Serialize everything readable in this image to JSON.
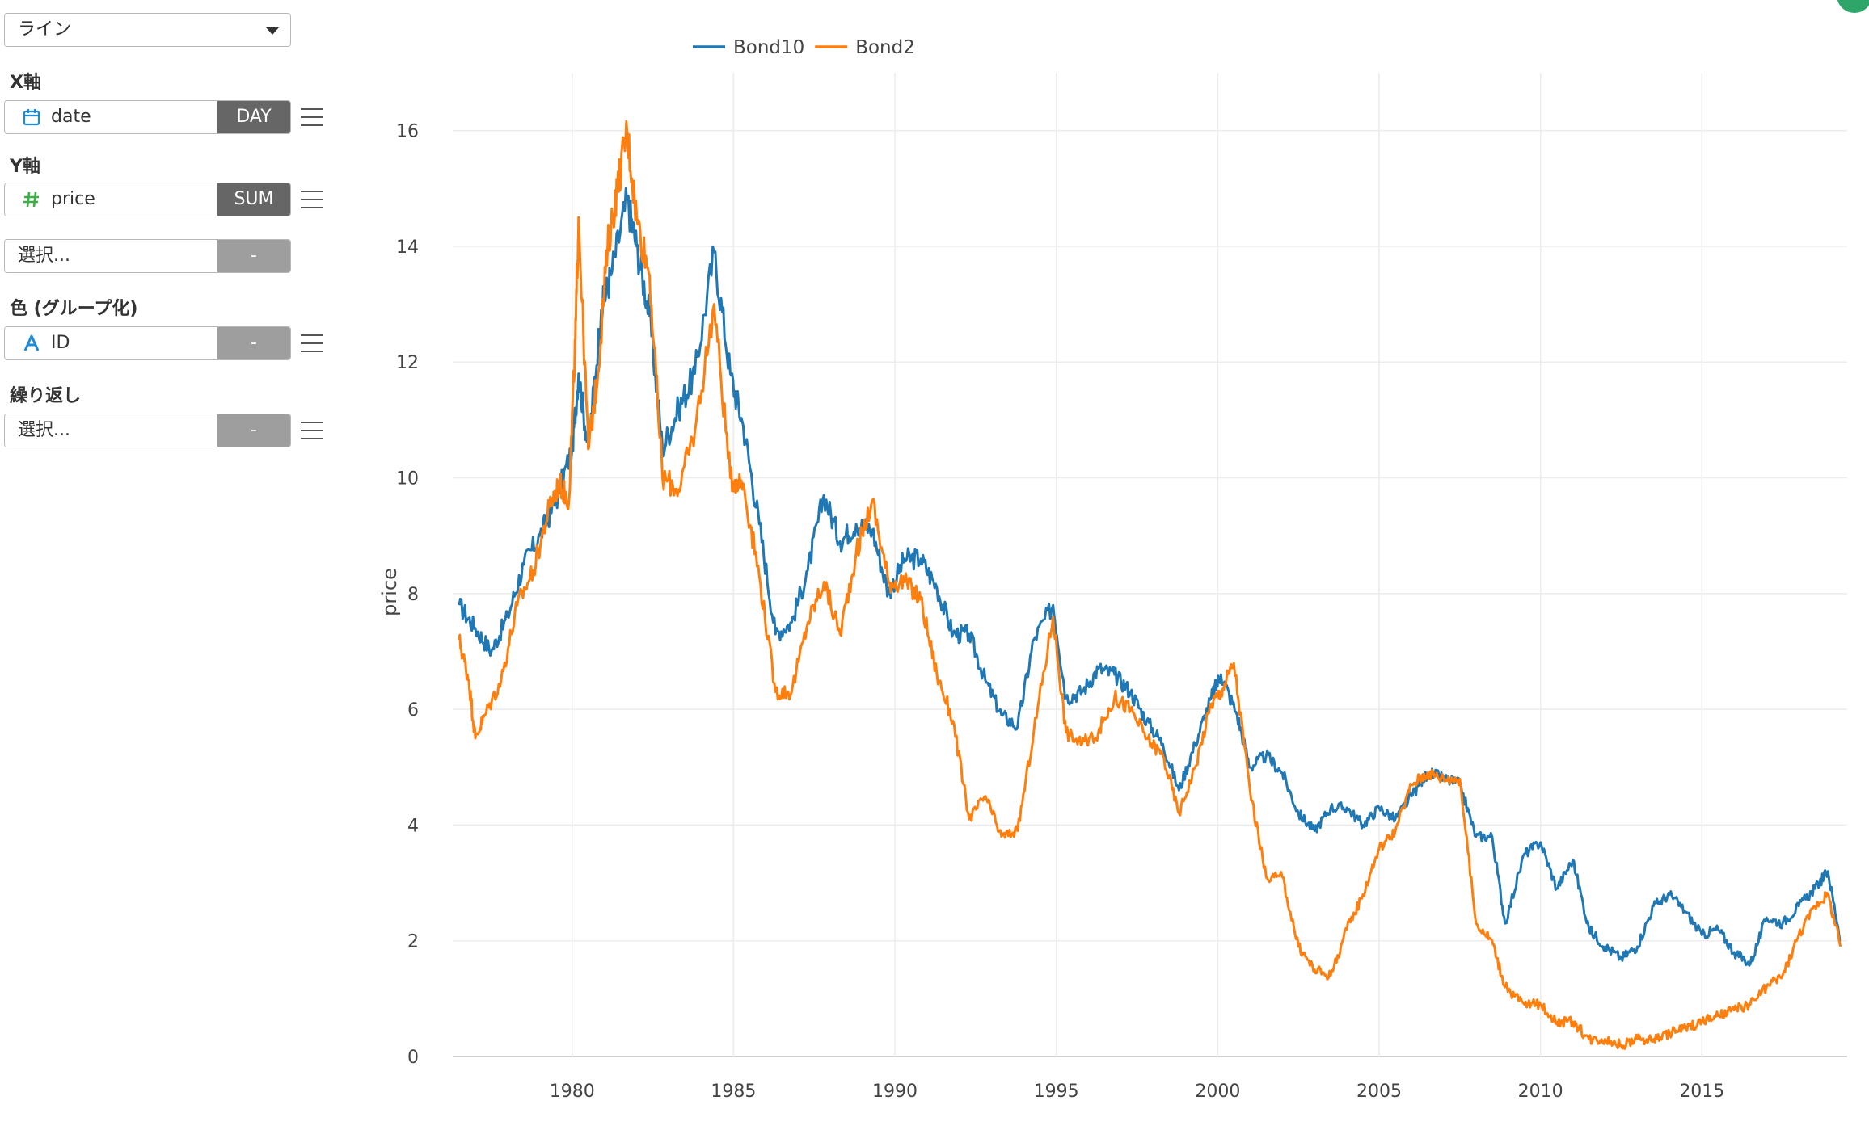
{
  "sidebar": {
    "chart_type": {
      "value": "ライン"
    },
    "x_axis": {
      "label": "X軸",
      "field": "date",
      "agg": "DAY",
      "icon": "calendar-icon"
    },
    "y_axis": {
      "label": "Y軸",
      "field": "price",
      "agg": "SUM",
      "icon": "number-hash-icon",
      "extra_placeholder": "選択...",
      "extra_agg": "-"
    },
    "color": {
      "label": "色 (グループ化)",
      "field": "ID",
      "agg": "-",
      "icon": "text-type-icon"
    },
    "repeat": {
      "label": "繰り返し",
      "placeholder": "選択...",
      "agg": "-"
    }
  },
  "colors": {
    "Bond10": "#1f77b4",
    "Bond2": "#ff7f0e",
    "accent_green": "#2ea66a"
  },
  "chart_data": {
    "type": "line",
    "xlabel": "",
    "ylabel": "price",
    "xlim": [
      1976.3,
      2019.5
    ],
    "ylim": [
      0,
      17
    ],
    "x_ticks": [
      "1980",
      "1985",
      "1990",
      "1995",
      "2000",
      "2005",
      "2010",
      "2015"
    ],
    "y_ticks": [
      "0",
      "2",
      "4",
      "6",
      "8",
      "10",
      "12",
      "14",
      "16"
    ],
    "grid": true,
    "legend": "top-center",
    "series": [
      {
        "name": "Bond10",
        "x": [
          1976.5,
          1977.0,
          1977.5,
          1978.0,
          1978.5,
          1979.0,
          1979.5,
          1980.0,
          1980.2,
          1980.5,
          1980.9,
          1981.2,
          1981.7,
          1982.0,
          1982.4,
          1982.8,
          1983.3,
          1983.8,
          1984.4,
          1984.9,
          1985.3,
          1985.8,
          1986.3,
          1986.8,
          1987.3,
          1987.8,
          1988.3,
          1988.8,
          1989.3,
          1989.8,
          1990.3,
          1990.8,
          1991.3,
          1991.8,
          1992.3,
          1992.8,
          1993.3,
          1993.8,
          1994.3,
          1994.9,
          1995.3,
          1995.8,
          1996.3,
          1996.8,
          1997.3,
          1997.8,
          1998.3,
          1998.8,
          1999.3,
          1999.8,
          2000.1,
          2000.6,
          2001.0,
          2001.5,
          2002.0,
          2002.5,
          2003.0,
          2003.5,
          2004.0,
          2004.5,
          2005.0,
          2005.5,
          2006.0,
          2006.5,
          2007.0,
          2007.5,
          2008.0,
          2008.5,
          2008.9,
          2009.5,
          2010.0,
          2010.5,
          2011.0,
          2011.5,
          2012.0,
          2012.5,
          2013.0,
          2013.5,
          2014.0,
          2014.5,
          2015.0,
          2015.5,
          2016.0,
          2016.5,
          2017.0,
          2017.5,
          2018.0,
          2018.5,
          2018.9,
          2019.3
        ],
        "y": [
          7.8,
          7.4,
          7.0,
          7.6,
          8.5,
          9.0,
          9.6,
          10.5,
          11.8,
          10.5,
          12.9,
          13.5,
          14.8,
          14.0,
          12.8,
          10.5,
          11.2,
          11.8,
          13.9,
          11.8,
          10.9,
          9.2,
          7.3,
          7.5,
          8.4,
          9.7,
          8.9,
          9.2,
          9.1,
          8.0,
          8.6,
          8.6,
          8.1,
          7.3,
          7.3,
          6.5,
          5.9,
          5.7,
          7.2,
          7.8,
          6.2,
          6.3,
          6.7,
          6.6,
          6.3,
          5.8,
          5.4,
          4.6,
          5.4,
          6.2,
          6.6,
          5.9,
          5.0,
          5.2,
          4.9,
          4.2,
          3.9,
          4.3,
          4.3,
          4.0,
          4.3,
          4.1,
          4.5,
          4.9,
          4.8,
          4.7,
          3.8,
          3.8,
          2.3,
          3.5,
          3.7,
          2.9,
          3.4,
          2.2,
          1.9,
          1.7,
          1.9,
          2.6,
          2.8,
          2.5,
          2.1,
          2.2,
          1.8,
          1.6,
          2.4,
          2.3,
          2.6,
          2.9,
          3.2,
          2.0
        ]
      },
      {
        "name": "Bond2",
        "x": [
          1976.5,
          1976.8,
          1977.0,
          1977.3,
          1977.8,
          1978.3,
          1978.8,
          1979.3,
          1979.6,
          1979.9,
          1980.1,
          1980.2,
          1980.5,
          1980.8,
          1981.1,
          1981.4,
          1981.7,
          1982.0,
          1982.4,
          1982.8,
          1983.3,
          1983.8,
          1984.4,
          1984.9,
          1985.3,
          1985.8,
          1986.3,
          1986.8,
          1987.3,
          1987.8,
          1988.3,
          1988.8,
          1989.3,
          1989.8,
          1990.3,
          1990.8,
          1991.3,
          1991.8,
          1992.3,
          1992.8,
          1993.3,
          1993.8,
          1994.3,
          1994.9,
          1995.3,
          1995.8,
          1996.3,
          1996.8,
          1997.3,
          1997.8,
          1998.3,
          1998.8,
          1999.3,
          1999.8,
          2000.1,
          2000.5,
          2001.0,
          2001.5,
          2002.0,
          2002.5,
          2003.0,
          2003.5,
          2004.0,
          2004.5,
          2005.0,
          2005.5,
          2006.0,
          2006.5,
          2007.0,
          2007.5,
          2008.0,
          2008.5,
          2008.9,
          2009.5,
          2010.0,
          2010.5,
          2011.0,
          2011.5,
          2012.0,
          2012.5,
          2013.0,
          2013.5,
          2014.0,
          2014.5,
          2015.0,
          2015.5,
          2016.0,
          2016.5,
          2017.0,
          2017.5,
          2018.0,
          2018.5,
          2018.9,
          2019.3
        ],
        "y": [
          7.2,
          6.5,
          5.5,
          5.9,
          6.5,
          7.8,
          8.4,
          9.5,
          9.9,
          9.6,
          12.4,
          14.5,
          10.5,
          11.8,
          14.0,
          15.0,
          16.0,
          14.5,
          13.5,
          10.0,
          9.8,
          10.8,
          13.0,
          10.0,
          9.9,
          8.3,
          6.3,
          6.3,
          7.5,
          8.2,
          7.3,
          8.7,
          9.6,
          8.2,
          8.2,
          7.9,
          6.6,
          5.8,
          4.1,
          4.5,
          3.8,
          3.9,
          5.6,
          7.6,
          5.6,
          5.4,
          5.6,
          6.2,
          6.0,
          5.5,
          5.2,
          4.2,
          5.0,
          6.1,
          6.3,
          6.8,
          4.6,
          3.1,
          3.1,
          1.9,
          1.5,
          1.4,
          2.2,
          2.8,
          3.6,
          3.9,
          4.7,
          4.9,
          4.8,
          4.8,
          2.3,
          2.0,
          1.2,
          0.9,
          0.9,
          0.6,
          0.6,
          0.3,
          0.3,
          0.2,
          0.3,
          0.3,
          0.4,
          0.5,
          0.6,
          0.7,
          0.8,
          0.9,
          1.2,
          1.4,
          2.1,
          2.6,
          2.8,
          1.9
        ]
      }
    ]
  }
}
